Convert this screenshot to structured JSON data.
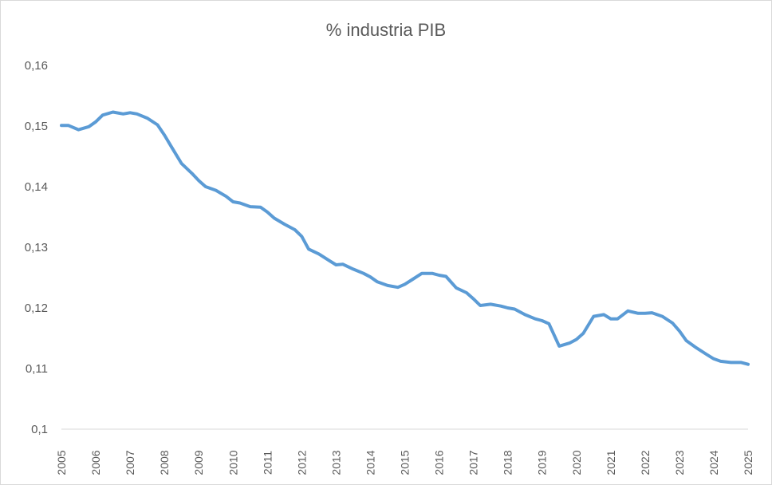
{
  "chart_data": {
    "type": "line",
    "title": "% industria PIB",
    "xlabel": "",
    "ylabel": "",
    "ylim": [
      0.1,
      0.16
    ],
    "y_ticks": [
      0.1,
      0.11,
      0.12,
      0.13,
      0.14,
      0.15,
      0.16
    ],
    "y_tick_labels": [
      "0,1",
      "0,11",
      "0,12",
      "0,13",
      "0,14",
      "0,15",
      "0,16"
    ],
    "x_range": [
      2005,
      2025
    ],
    "x_tick_labels": [
      "2005",
      "2006",
      "2007",
      "2008",
      "2009",
      "2010",
      "2011",
      "2012",
      "2013",
      "2014",
      "2015",
      "2016",
      "2017",
      "2018",
      "2019",
      "2020",
      "2021",
      "2022",
      "2023",
      "2024",
      "2025"
    ],
    "grid": false,
    "line_color": "#5b9bd5",
    "series": [
      {
        "name": "% industria PIB",
        "x": [
          2005.0,
          2005.2,
          2005.5,
          2005.8,
          2006.0,
          2006.2,
          2006.5,
          2006.8,
          2007.0,
          2007.2,
          2007.5,
          2007.8,
          2008.0,
          2008.2,
          2008.5,
          2008.8,
          2009.0,
          2009.2,
          2009.5,
          2009.8,
          2010.0,
          2010.2,
          2010.5,
          2010.8,
          2011.0,
          2011.2,
          2011.5,
          2011.8,
          2012.0,
          2012.2,
          2012.5,
          2012.8,
          2013.0,
          2013.2,
          2013.5,
          2013.8,
          2014.0,
          2014.2,
          2014.5,
          2014.8,
          2015.0,
          2015.2,
          2015.5,
          2015.8,
          2016.0,
          2016.2,
          2016.5,
          2016.8,
          2017.0,
          2017.2,
          2017.5,
          2017.8,
          2018.0,
          2018.2,
          2018.5,
          2018.8,
          2019.0,
          2019.2,
          2019.5,
          2019.8,
          2020.0,
          2020.2,
          2020.5,
          2020.8,
          2021.0,
          2021.2,
          2021.5,
          2021.8,
          2022.0,
          2022.2,
          2022.5,
          2022.8,
          2023.0,
          2023.2,
          2023.5,
          2023.8,
          2024.0,
          2024.2,
          2024.5,
          2024.8,
          2025.0
        ],
        "values": [
          0.1501,
          0.1501,
          0.1494,
          0.1499,
          0.1507,
          0.1518,
          0.1523,
          0.152,
          0.1522,
          0.152,
          0.1513,
          0.1502,
          0.1485,
          0.1466,
          0.1438,
          0.1422,
          0.141,
          0.14,
          0.1394,
          0.1384,
          0.1375,
          0.1373,
          0.1367,
          0.1366,
          0.1358,
          0.1348,
          0.1338,
          0.1329,
          0.1318,
          0.1297,
          0.1289,
          0.1278,
          0.1271,
          0.1272,
          0.1264,
          0.1257,
          0.1251,
          0.1243,
          0.1237,
          0.1234,
          0.1239,
          0.1246,
          0.1257,
          0.1257,
          0.1254,
          0.1252,
          0.1233,
          0.1225,
          0.1215,
          0.1204,
          0.1206,
          0.1203,
          0.12,
          0.1198,
          0.1189,
          0.1182,
          0.1179,
          0.1174,
          0.1137,
          0.1142,
          0.1148,
          0.1158,
          0.1186,
          0.1189,
          0.1182,
          0.1182,
          0.1195,
          0.1191,
          0.1191,
          0.1192,
          0.1186,
          0.1175,
          0.1162,
          0.1146,
          0.1134,
          0.1123,
          0.1116,
          0.1112,
          0.111,
          0.111,
          0.1107
        ]
      }
    ]
  }
}
